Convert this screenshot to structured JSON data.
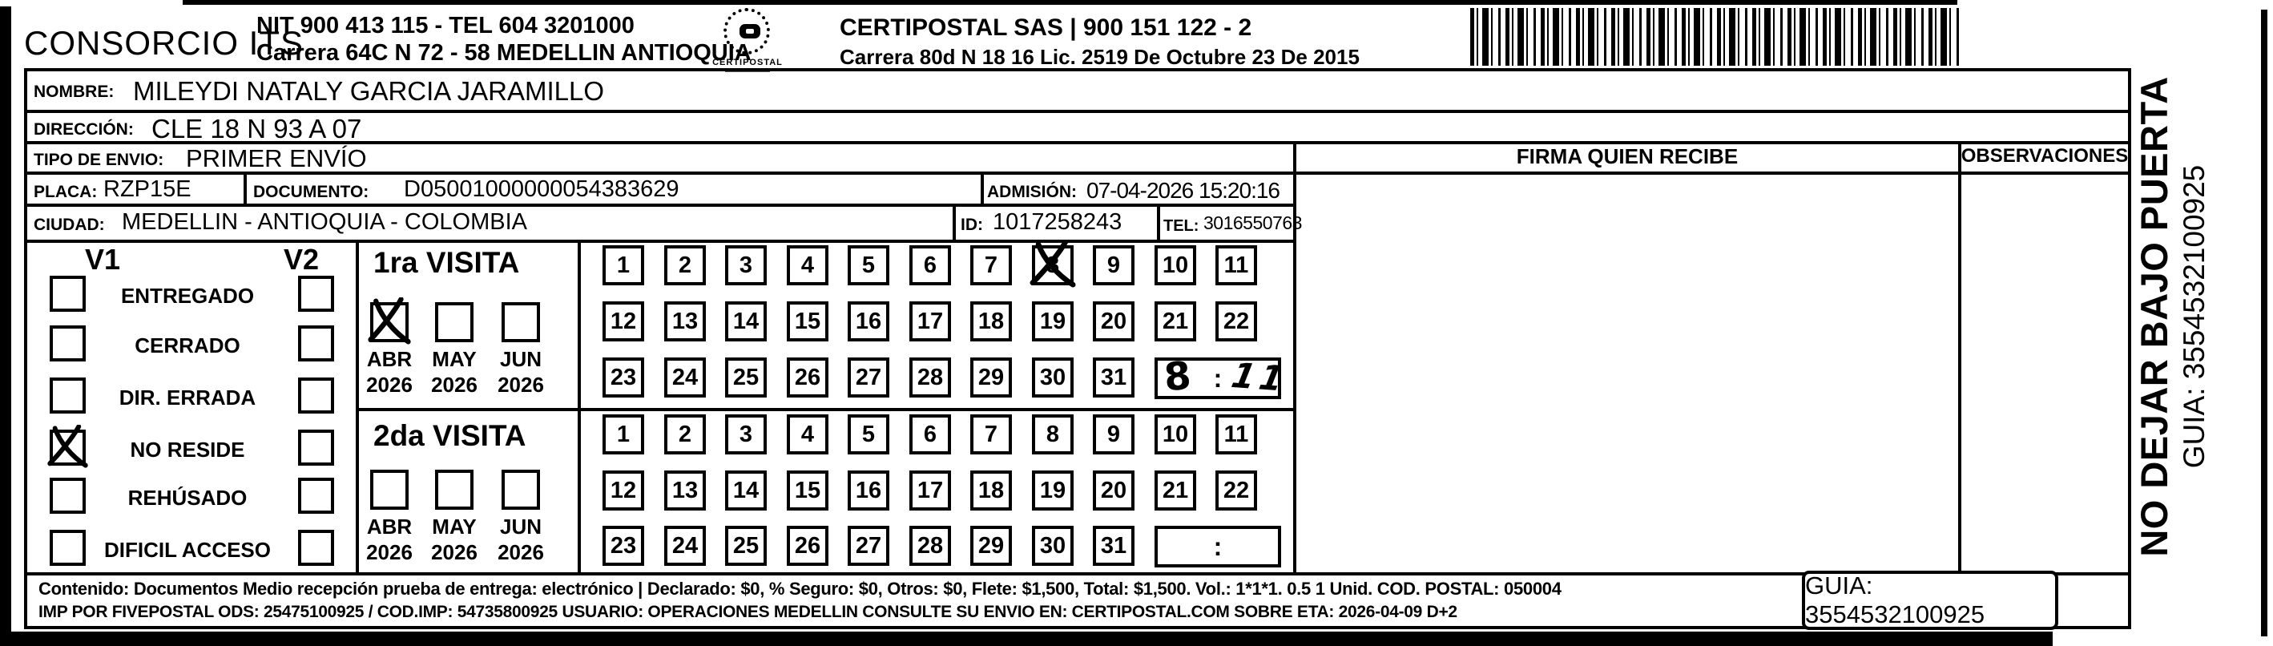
{
  "header": {
    "company": "CONSORCIO ITS",
    "company_info_line1": "NIT 900 413 115 - TEL 604 3201000",
    "company_info_line2": "Carrera 64C N 72 - 58 MEDELLIN ANTIOQUIA",
    "logo_text": "CERTIPOSTAL",
    "certipostal_line1": "CERTIPOSTAL SAS | 900 151 122 - 2",
    "certipostal_line2": "Carrera 80d N 18 16  Lic. 2519 De Octubre 23 De 2015"
  },
  "shipment": {
    "nombre_label": "NOMBRE:",
    "nombre": "MILEYDI NATALY GARCIA JARAMILLO",
    "direccion_label": "DIRECCIÓN:",
    "direccion": "CLE 18 N 93 A 07",
    "tipo_envio_label": "TIPO DE ENVIO:",
    "tipo_envio": "PRIMER ENVÍO",
    "placa_label": "PLACA:",
    "placa": "RZP15E",
    "documento_label": "DOCUMENTO:",
    "documento": "D05001000000054383629",
    "admision_label": "ADMISIÓN:",
    "admision": "07-04-2026 15:20:16",
    "ciudad_label": "CIUDAD:",
    "ciudad": "MEDELLIN - ANTIOQUIA - COLOMBIA",
    "id_label": "ID:",
    "id": "1017258243",
    "tel_label": "TEL:",
    "tel": "3016550763"
  },
  "columns": {
    "firma_header": "FIRMA QUIEN RECIBE",
    "observaciones_header": "OBSERVACIONES"
  },
  "status_panel": {
    "v1_header": "V1",
    "v2_header": "V2",
    "options": [
      {
        "label": "ENTREGADO",
        "v1_checked": false,
        "v2_checked": false
      },
      {
        "label": "CERRADO",
        "v1_checked": false,
        "v2_checked": false
      },
      {
        "label": "DIR. ERRADA",
        "v1_checked": false,
        "v2_checked": false
      },
      {
        "label": "NO RESIDE",
        "v1_checked": true,
        "v2_checked": false
      },
      {
        "label": "REHÚSADO",
        "v1_checked": false,
        "v2_checked": false
      },
      {
        "label": "DIFICIL ACCESO",
        "v1_checked": false,
        "v2_checked": false
      }
    ]
  },
  "visits": [
    {
      "title": "1ra VISITA",
      "months": [
        {
          "month": "ABR",
          "year": "2026",
          "checked": true
        },
        {
          "month": "MAY",
          "year": "2026",
          "checked": false
        },
        {
          "month": "JUN",
          "year": "2026",
          "checked": false
        }
      ],
      "day_rows": [
        [
          1,
          2,
          3,
          4,
          5,
          6,
          7,
          8,
          9,
          10,
          11
        ],
        [
          12,
          13,
          14,
          15,
          16,
          17,
          18,
          19,
          20,
          21,
          22
        ],
        [
          23,
          24,
          25,
          26,
          27,
          28,
          29,
          30,
          31
        ]
      ],
      "crossed_day": 8,
      "time_hour": "8",
      "time_separator": ":",
      "time_minutes": "11"
    },
    {
      "title": "2da VISITA",
      "months": [
        {
          "month": "ABR",
          "year": "2026",
          "checked": false
        },
        {
          "month": "MAY",
          "year": "2026",
          "checked": false
        },
        {
          "month": "JUN",
          "year": "2026",
          "checked": false
        }
      ],
      "day_rows": [
        [
          1,
          2,
          3,
          4,
          5,
          6,
          7,
          8,
          9,
          10,
          11
        ],
        [
          12,
          13,
          14,
          15,
          16,
          17,
          18,
          19,
          20,
          21,
          22
        ],
        [
          23,
          24,
          25,
          26,
          27,
          28,
          29,
          30,
          31
        ]
      ],
      "crossed_day": null,
      "time_hour": "",
      "time_separator": ":",
      "time_minutes": ""
    }
  ],
  "footer": {
    "line1": "Contenido: Documentos Medio recepción prueba de entrega: electrónico | Declarado: $0, % Seguro: $0, Otros: $0, Flete: $1,500, Total: $1,500. Vol.: 1*1*1. 0.5 1 Unid. COD. POSTAL: 050004",
    "line2": "IMP POR FIVEPOSTAL ODS: 25475100925 / COD.IMP: 54735800925 USUARIO: OPERACIONES MEDELLIN CONSULTE SU ENVIO EN: CERTIPOSTAL.COM SOBRE ETA: 2026-04-09 D+2",
    "guia_box": "GUIA: 3554532100925"
  },
  "side_label": {
    "line1": "NO DEJAR BAJO PUERTA",
    "line2": "GUIA: 3554532100925"
  }
}
